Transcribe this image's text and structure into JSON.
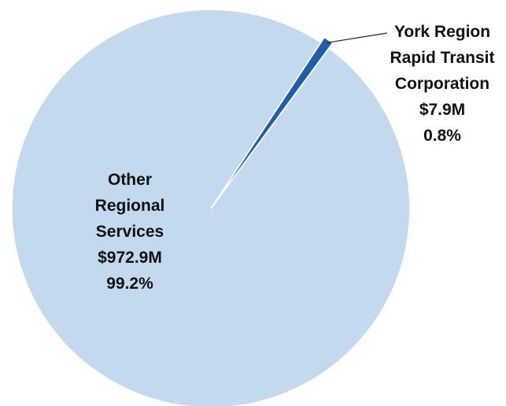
{
  "chart_data": {
    "type": "pie",
    "categories": [
      "York Region Rapid Transit Corporation",
      "Other Regional Services"
    ],
    "values": [
      0.8,
      99.2
    ],
    "value_labels": [
      "0.8%",
      "99.2%"
    ],
    "amounts": [
      7900000,
      972900000
    ],
    "amount_labels": [
      "$7.9M",
      "$972.9M"
    ],
    "colors": [
      "#1f5fa8",
      "#c5d9ee"
    ]
  }
}
